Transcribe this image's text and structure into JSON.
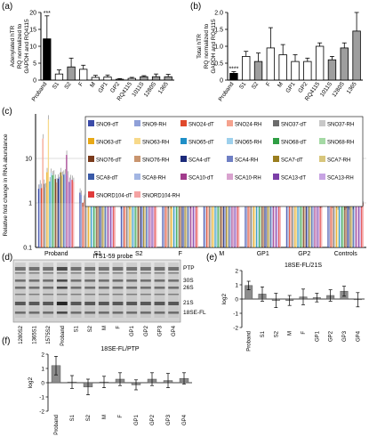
{
  "panels": {
    "a": "(a)",
    "b": "(b)",
    "c": "(c)",
    "d": "(d)",
    "e": "(e)",
    "f": "(f)"
  },
  "chart_data": [
    {
      "id": "a",
      "type": "bar",
      "ylabel": "Adenylated hTR\nRQ normalized to\nGAPDH and RQ4115",
      "ylim": [
        0,
        20
      ],
      "yticks": [
        0,
        5,
        10,
        15,
        20
      ],
      "categories": [
        "Proband",
        "S1",
        "S2",
        "F",
        "M",
        "GP1",
        "GP2",
        "RQ4115",
        "1011S",
        "1280S",
        "1365"
      ],
      "values": [
        12.2,
        1.8,
        3.9,
        3.2,
        0.8,
        0.9,
        0.25,
        0.5,
        1.0,
        1.0,
        1.0
      ],
      "errors": [
        6.8,
        1.2,
        2.6,
        1.2,
        0.6,
        0.6,
        0.2,
        0.3,
        0.3,
        0.8,
        0.7
      ],
      "fills": [
        "#000000",
        "#ffffff",
        "#9e9e9e",
        "#ffffff",
        "#ffffff",
        "#ffffff",
        "#ffffff",
        "#ffffff",
        "#9e9e9e",
        "#9e9e9e",
        "#9e9e9e"
      ],
      "annotation": "***"
    },
    {
      "id": "b",
      "type": "bar",
      "ylabel": "Total hTR\nRQ normalized to\nGAPDH and RQ4115",
      "ylim": [
        0,
        2.0
      ],
      "yticks": [
        0,
        0.5,
        1.0,
        1.5,
        2.0
      ],
      "categories": [
        "Proband",
        "S1",
        "S2",
        "F",
        "M",
        "GP1",
        "GP2",
        "RQ4115",
        "1011S",
        "1280S",
        "1365"
      ],
      "values": [
        0.2,
        0.7,
        0.55,
        0.95,
        0.75,
        0.55,
        0.55,
        1.0,
        0.6,
        0.95,
        1.45
      ],
      "errors": [
        0.05,
        0.15,
        0.25,
        0.6,
        0.3,
        0.2,
        0.1,
        0.1,
        0.1,
        0.15,
        0.55
      ],
      "fills": [
        "#000000",
        "#ffffff",
        "#9e9e9e",
        "#ffffff",
        "#ffffff",
        "#ffffff",
        "#ffffff",
        "#ffffff",
        "#9e9e9e",
        "#9e9e9e",
        "#9e9e9e"
      ],
      "annotation": "****"
    },
    {
      "id": "c",
      "type": "bar",
      "ylabel": "Relative fold change in RNA abundance",
      "yscale": "log",
      "yticks": [
        0.1,
        1,
        10
      ],
      "yticklabels": [
        "0.1",
        "1",
        "10"
      ],
      "groups": [
        "Proband",
        "S1",
        "S2",
        "F",
        "M",
        "GP1",
        "GP2",
        "Controls"
      ],
      "legend": [
        "SNO9-dT",
        "SNO9-RH",
        "SNO24-dT",
        "SNO24-RH",
        "SNO37-dT",
        "SNO37-RH",
        "SNO63-dT",
        "SNO63-RH",
        "SNO65-dT",
        "SNO65-RH",
        "SNO68-dT",
        "SNO68-RH",
        "SNO76-dT",
        "SNO76-RH",
        "SCA4-dT",
        "SCA4-RH",
        "SCA7-dT",
        "SCA7-RH",
        "SCA8-dT",
        "SCA8-RH",
        "SCA10-dT",
        "SCA10-RH",
        "SCA13-dT",
        "SCA13-RH",
        "SNORD104-dT",
        "SNORD104-RH"
      ],
      "colors": [
        "#3b4ba8",
        "#8fa0d8",
        "#e0492c",
        "#f5a28e",
        "#6b6b6b",
        "#c8c8c8",
        "#e8a917",
        "#f7d98a",
        "#1f8fc7",
        "#9dd0ec",
        "#2f9e44",
        "#a4d9a4",
        "#7a3b1c",
        "#c9956f",
        "#1c2a7a",
        "#6f7fc4",
        "#9a7e1f",
        "#d8c67c",
        "#3a5aa8",
        "#a3b6e3",
        "#a13b8c",
        "#d9a3cf",
        "#7b3fa8",
        "#c7a3e3",
        "#e03b3b",
        "#f5a3a3"
      ],
      "series_group_scale": [
        3.2,
        1.15,
        1.05,
        1.1,
        1.2,
        1.15,
        1.1,
        1.0
      ]
    },
    {
      "id": "e",
      "type": "bar",
      "title": "18SE-FL/21S",
      "ylabel": "log2",
      "ylim": [
        -2,
        2
      ],
      "yticks": [
        -2,
        -1,
        0,
        1,
        2
      ],
      "categories": [
        "Proband",
        "S1",
        "S2",
        "M",
        "F",
        "GP1",
        "GP2",
        "GP3",
        "GP4"
      ],
      "values": [
        0.95,
        0.35,
        -0.1,
        -0.1,
        0.15,
        0.1,
        0.25,
        0.55,
        -0.05
      ],
      "errors": [
        0.3,
        0.5,
        0.5,
        0.35,
        0.55,
        0.3,
        0.4,
        0.35,
        0.5
      ]
    },
    {
      "id": "f",
      "type": "bar",
      "title": "18SE-FL/PTP",
      "ylabel": "log2",
      "ylim": [
        -2,
        2
      ],
      "yticks": [
        -2,
        -1,
        0,
        1,
        2
      ],
      "categories": [
        "Proband",
        "S1",
        "S2",
        "M",
        "F",
        "GP1",
        "GP2",
        "GP3",
        "GP4"
      ],
      "values": [
        1.2,
        0.05,
        -0.3,
        0.05,
        0.25,
        -0.15,
        0.25,
        0.15,
        0.3
      ],
      "errors": [
        0.65,
        0.45,
        0.55,
        0.4,
        0.45,
        0.35,
        0.45,
        0.5,
        0.4
      ]
    }
  ],
  "blot": {
    "title": "ITS1-59 probe",
    "lanes": [
      "1280S2",
      "1365S1",
      "1575S2",
      "Proband",
      "S1",
      "S2",
      "M",
      "F",
      "GP1",
      "GP2",
      "GP3",
      "GP4"
    ],
    "bands": [
      "PTP",
      "30S",
      "26S",
      "21S",
      "18SE-FL"
    ]
  }
}
